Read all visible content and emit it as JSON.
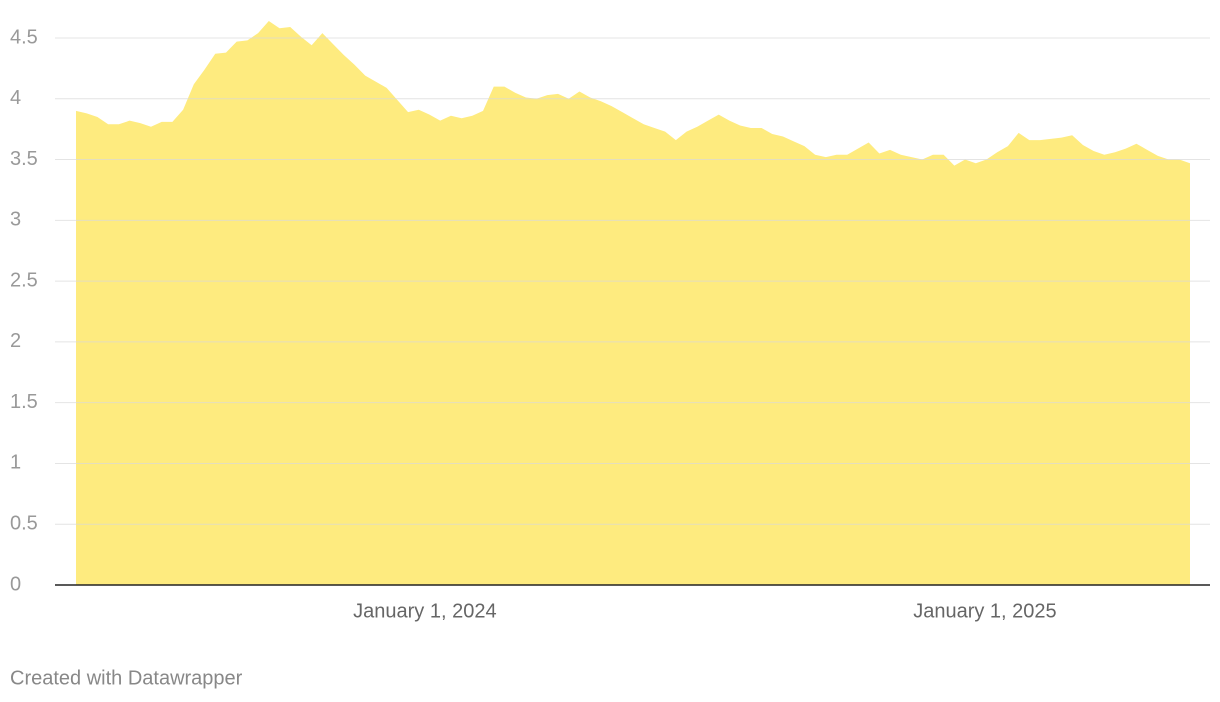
{
  "chart_data": {
    "type": "area",
    "color": "#feeb7f",
    "grid": true,
    "x": [
      "2023-05-18",
      "2023-05-25",
      "2023-06-01",
      "2023-06-08",
      "2023-06-15",
      "2023-06-22",
      "2023-06-29",
      "2023-07-06",
      "2023-07-13",
      "2023-07-20",
      "2023-07-27",
      "2023-08-03",
      "2023-08-10",
      "2023-08-17",
      "2023-08-24",
      "2023-08-31",
      "2023-09-07",
      "2023-09-14",
      "2023-09-21",
      "2023-09-28",
      "2023-10-05",
      "2023-10-12",
      "2023-10-19",
      "2023-10-26",
      "2023-11-02",
      "2023-11-09",
      "2023-11-16",
      "2023-11-23",
      "2023-11-30",
      "2023-12-07",
      "2023-12-14",
      "2023-12-21",
      "2023-12-28",
      "2024-01-04",
      "2024-01-11",
      "2024-01-18",
      "2024-01-25",
      "2024-02-01",
      "2024-02-08",
      "2024-02-15",
      "2024-02-22",
      "2024-02-29",
      "2024-03-07",
      "2024-03-14",
      "2024-03-21",
      "2024-03-28",
      "2024-04-04",
      "2024-04-11",
      "2024-04-18",
      "2024-04-25",
      "2024-05-02",
      "2024-05-09",
      "2024-05-16",
      "2024-05-23",
      "2024-05-30",
      "2024-06-06",
      "2024-06-13",
      "2024-06-20",
      "2024-06-27",
      "2024-07-04",
      "2024-07-11",
      "2024-07-18",
      "2024-07-25",
      "2024-08-01",
      "2024-08-08",
      "2024-08-15",
      "2024-08-22",
      "2024-08-29",
      "2024-09-05",
      "2024-09-12",
      "2024-09-19",
      "2024-09-26",
      "2024-10-03",
      "2024-10-10",
      "2024-10-17",
      "2024-10-24",
      "2024-10-31",
      "2024-11-07",
      "2024-11-14",
      "2024-11-21",
      "2024-11-28",
      "2024-12-05",
      "2024-12-12",
      "2024-12-19",
      "2024-12-26",
      "2025-01-02",
      "2025-01-09",
      "2025-01-16",
      "2025-01-23",
      "2025-01-30",
      "2025-02-06",
      "2025-02-13",
      "2025-02-20",
      "2025-02-27",
      "2025-03-06",
      "2025-03-13",
      "2025-03-20",
      "2025-03-27",
      "2025-04-03",
      "2025-04-10",
      "2025-04-17",
      "2025-04-24",
      "2025-05-01",
      "2025-05-08",
      "2025-05-15"
    ],
    "values": [
      3.9,
      3.88,
      3.85,
      3.79,
      3.79,
      3.82,
      3.8,
      3.77,
      3.81,
      3.81,
      3.91,
      4.12,
      4.24,
      4.37,
      4.38,
      4.47,
      4.48,
      4.54,
      4.64,
      4.58,
      4.59,
      4.51,
      4.44,
      4.54,
      4.45,
      4.36,
      4.28,
      4.19,
      4.14,
      4.09,
      3.99,
      3.89,
      3.91,
      3.87,
      3.82,
      3.86,
      3.84,
      3.86,
      3.9,
      4.1,
      4.1,
      4.05,
      4.01,
      4.0,
      4.03,
      4.04,
      4.0,
      4.06,
      4.01,
      3.98,
      3.94,
      3.89,
      3.84,
      3.79,
      3.76,
      3.73,
      3.66,
      3.73,
      3.77,
      3.82,
      3.87,
      3.82,
      3.78,
      3.76,
      3.76,
      3.71,
      3.69,
      3.65,
      3.61,
      3.54,
      3.52,
      3.54,
      3.54,
      3.59,
      3.64,
      3.55,
      3.58,
      3.54,
      3.52,
      3.5,
      3.54,
      3.54,
      3.45,
      3.5,
      3.47,
      3.5,
      3.56,
      3.61,
      3.72,
      3.66,
      3.66,
      3.67,
      3.68,
      3.7,
      3.62,
      3.57,
      3.54,
      3.56,
      3.59,
      3.63,
      3.58,
      3.53,
      3.5,
      3.5,
      3.47
    ],
    "xlim": [
      "2023-05-18",
      "2025-05-15"
    ],
    "xticks": [
      {
        "value": "2024-01-01",
        "label": "January 1, 2024"
      },
      {
        "value": "2025-01-01",
        "label": "January 1, 2025"
      }
    ],
    "ylim": [
      0,
      4.5
    ],
    "yticks": [
      0,
      0.5,
      1,
      1.5,
      2,
      2.5,
      3,
      3.5,
      4,
      4.5
    ]
  },
  "credit": "Created with Datawrapper"
}
